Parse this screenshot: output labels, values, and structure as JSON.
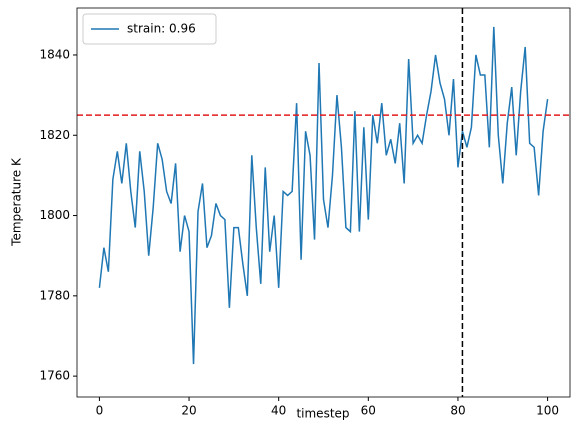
{
  "chart_data": {
    "type": "line",
    "x": [
      0,
      1,
      2,
      3,
      4,
      5,
      6,
      7,
      8,
      9,
      10,
      11,
      12,
      13,
      14,
      15,
      16,
      17,
      18,
      19,
      20,
      21,
      22,
      23,
      24,
      25,
      26,
      27,
      28,
      29,
      30,
      31,
      32,
      33,
      34,
      35,
      36,
      37,
      38,
      39,
      40,
      41,
      42,
      43,
      44,
      45,
      46,
      47,
      48,
      49,
      50,
      51,
      52,
      53,
      54,
      55,
      56,
      57,
      58,
      59,
      60,
      61,
      62,
      63,
      64,
      65,
      66,
      67,
      68,
      69,
      70,
      71,
      72,
      73,
      74,
      75,
      76,
      77,
      78,
      79,
      80,
      81,
      82,
      83,
      84,
      85,
      86,
      87,
      88,
      89,
      90,
      91,
      92,
      93,
      94,
      95,
      96,
      97,
      98,
      99,
      100
    ],
    "series": [
      {
        "name": "strain: 0.96",
        "color": "#1f77b4",
        "values": [
          1782,
          1792,
          1786,
          1809,
          1816,
          1808,
          1818,
          1806,
          1797,
          1816,
          1806,
          1790,
          1802,
          1818,
          1814,
          1806,
          1803,
          1813,
          1791,
          1800,
          1796,
          1763,
          1801,
          1808,
          1792,
          1795,
          1803,
          1800,
          1799,
          1777,
          1797,
          1797,
          1788,
          1780,
          1815,
          1797,
          1783,
          1812,
          1791,
          1800,
          1782,
          1806,
          1805,
          1806,
          1828,
          1789,
          1821,
          1815,
          1794,
          1838,
          1804,
          1797,
          1810,
          1830,
          1817,
          1797,
          1796,
          1826,
          1796,
          1822,
          1799,
          1825,
          1818,
          1828,
          1815,
          1819,
          1813,
          1823,
          1808,
          1839,
          1818,
          1820,
          1818,
          1825,
          1831,
          1840,
          1833,
          1829,
          1820,
          1834,
          1812,
          1821,
          1817,
          1822,
          1840,
          1835,
          1835,
          1817,
          1847,
          1820,
          1808,
          1823,
          1832,
          1815,
          1831,
          1842,
          1818,
          1817,
          1805,
          1821,
          1829
        ]
      }
    ],
    "x_label": "timestep",
    "y_label": "Temperature K",
    "xlim": [
      -5,
      105
    ],
    "ylim": [
      1754.8,
      1851.7
    ],
    "xticks": [
      0,
      20,
      40,
      60,
      80,
      100
    ],
    "yticks": [
      1760,
      1780,
      1800,
      1820,
      1840
    ],
    "hline": {
      "y": 1825,
      "color": "#e41a1c"
    },
    "vline": {
      "x": 81,
      "color": "#000000"
    },
    "legend": "upper left",
    "grid": false
  }
}
